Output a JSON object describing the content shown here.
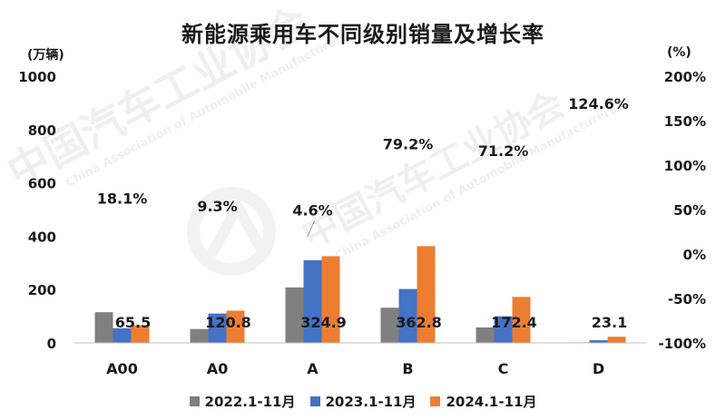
{
  "chart_data": {
    "type": "bar",
    "title": "新能源乘用车不同级别销量及增长率",
    "left_unit": "(万辆)",
    "right_unit": "(%)",
    "categories": [
      "A00",
      "A0",
      "A",
      "B",
      "C",
      "D"
    ],
    "ylim": [
      0,
      1000
    ],
    "yticks": [
      0,
      200,
      400,
      600,
      800,
      1000
    ],
    "y2lim": [
      -100,
      200
    ],
    "y2ticks": [
      "-100%",
      "-50%",
      "0%",
      "50%",
      "100%",
      "150%",
      "200%"
    ],
    "series": [
      {
        "name": "2022.1-11月",
        "color": "#808080",
        "values": [
          115,
          52,
          208,
          132,
          58,
          2
        ]
      },
      {
        "name": "2023.1-11月",
        "color": "#4472c4",
        "values": [
          55,
          110,
          310,
          202,
          100,
          10
        ]
      },
      {
        "name": "2024.1-11月",
        "color": "#ed7d31",
        "values": [
          65.5,
          120.8,
          324.9,
          362.8,
          172.4,
          23.1
        ]
      }
    ],
    "value_labels": [
      "65.5",
      "120.8",
      "324.9",
      "362.8",
      "172.4",
      "23.1"
    ],
    "growth_labels": [
      "18.1%",
      "9.3%",
      "4.6%",
      "79.2%",
      "71.2%",
      "124.6%"
    ],
    "growth_values": [
      18.1,
      9.3,
      4.6,
      79.2,
      71.2,
      124.6
    ],
    "grid": false,
    "legend_position": "bottom"
  },
  "watermark": {
    "text_cn": "中国汽车工业协会",
    "text_en": "China Association of Automobile Manufacturers"
  }
}
